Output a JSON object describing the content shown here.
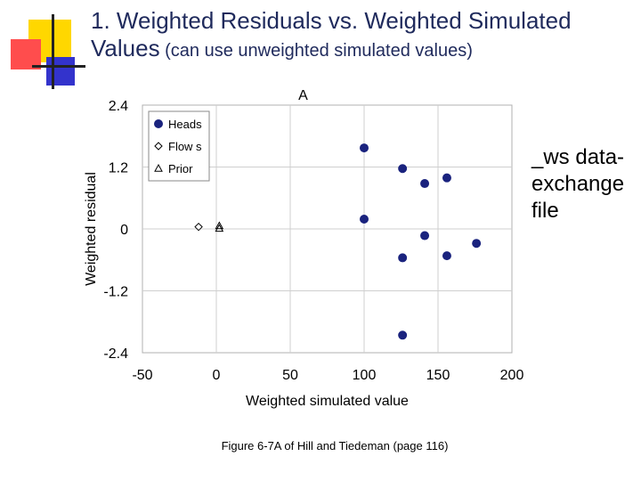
{
  "slide": {
    "title_line1": "1. Weighted Residuals vs. Weighted Simulated",
    "title_line2_main": "Values",
    "title_line2_note": " (can use unweighted simulated values)",
    "side_note": "_ws data-exchange file",
    "caption": "Figure 6-7A of Hill and Tiedeman (page 116)",
    "accent_colors": {
      "yellow": "#ffd700",
      "red": "#ff4d4d",
      "blue": "#3333cc",
      "line": "#222222"
    }
  },
  "chart_data": {
    "type": "scatter",
    "title": "A",
    "xlabel": "Weighted simulated value",
    "ylabel": "Weighted residual",
    "xlim": [
      -50,
      200
    ],
    "ylim": [
      -2.4,
      2.4
    ],
    "xticks": [
      -50,
      0,
      50,
      100,
      150,
      200
    ],
    "yticks": [
      2.4,
      1.2,
      0,
      -1.2,
      -2.4
    ],
    "ytick_labels": [
      "2.4",
      "1.2",
      "0",
      "-1.2",
      "-2.4"
    ],
    "grid": true,
    "legend_position": "top-left",
    "series": [
      {
        "name": "Heads",
        "marker": "filled-circle",
        "color": "#1a237e",
        "points": [
          [
            100,
            1.57
          ],
          [
            100,
            0.19
          ],
          [
            126,
            1.17
          ],
          [
            126,
            -0.56
          ],
          [
            126,
            -2.06
          ],
          [
            141,
            0.88
          ],
          [
            141,
            -0.13
          ],
          [
            156,
            0.99
          ],
          [
            156,
            -0.52
          ],
          [
            176,
            -0.28
          ]
        ]
      },
      {
        "name": "Flow s",
        "marker": "open-diamond",
        "color": "#000000",
        "points": [
          [
            -12,
            0.04
          ]
        ]
      },
      {
        "name": "Prior",
        "marker": "open-triangle",
        "color": "#000000",
        "points": [
          [
            2,
            0.06
          ],
          [
            2,
            0.01
          ]
        ]
      }
    ]
  }
}
